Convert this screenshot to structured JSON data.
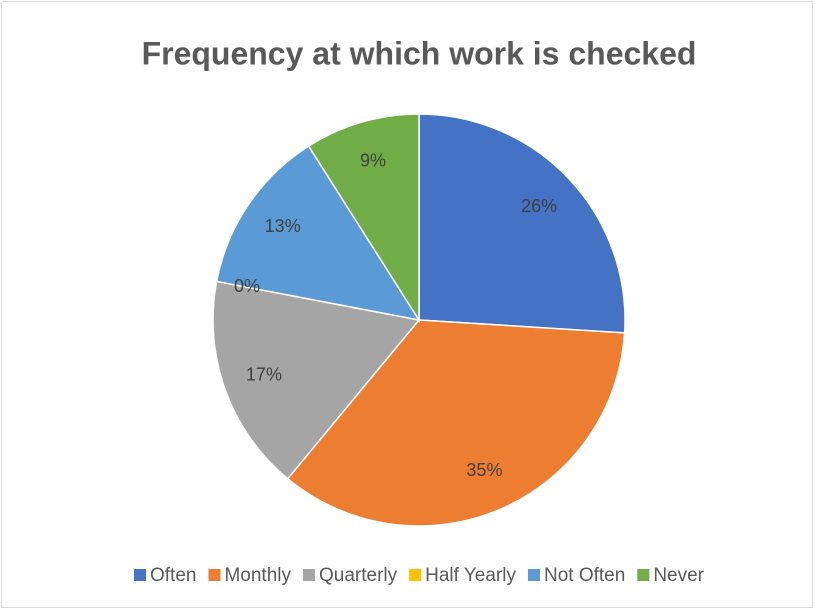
{
  "chart_data": {
    "type": "pie",
    "title": "Frequency at which work is checked",
    "categories": [
      "Often",
      "Monthly",
      "Quarterly",
      "Half Yearly",
      "Not Often",
      "Never"
    ],
    "values": [
      26,
      35,
      17,
      0,
      13,
      9
    ],
    "value_labels": [
      "26%",
      "35%",
      "17%",
      "0%",
      "13%",
      "9%"
    ],
    "colors": [
      "#4472c4",
      "#ed7d31",
      "#a5a5a5",
      "#ffc000",
      "#5b9bd5",
      "#70ad47"
    ],
    "legend": "bottom"
  }
}
